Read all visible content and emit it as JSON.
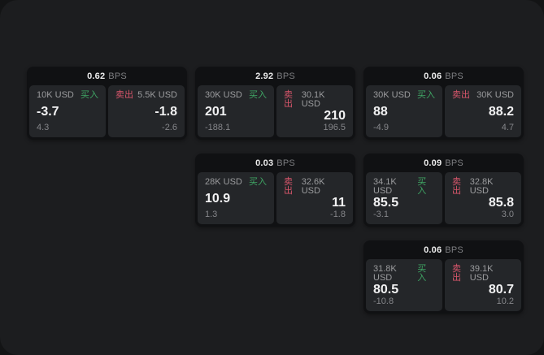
{
  "labels": {
    "bps_unit": "BPS",
    "buy": "买入",
    "sell": "卖出"
  },
  "colors": {
    "background": "#131415",
    "window": "#1c1d1f",
    "card": "#101113",
    "panel": "#242629",
    "buy_green": "#3fa564",
    "sell_red": "#d8566b",
    "value_text": "#f2f2f3",
    "muted_text": "#85868a"
  },
  "cards": [
    {
      "bps": "0.62",
      "buy": {
        "notional": "10K USD",
        "value": "-3.7",
        "delta": "4.3"
      },
      "sell": {
        "notional": "5.5K USD",
        "value": "-1.8",
        "delta": "-2.6"
      }
    },
    {
      "bps": "2.92",
      "buy": {
        "notional": "30K USD",
        "value": "201",
        "delta": "-188.1"
      },
      "sell": {
        "notional": "30.1K USD",
        "value": "210",
        "delta": "196.5"
      }
    },
    {
      "bps": "0.06",
      "buy": {
        "notional": "30K USD",
        "value": "88",
        "delta": "-4.9"
      },
      "sell": {
        "notional": "30K USD",
        "value": "88.2",
        "delta": "4.7"
      }
    },
    {
      "bps": "0.03",
      "buy": {
        "notional": "28K USD",
        "value": "10.9",
        "delta": "1.3"
      },
      "sell": {
        "notional": "32.6K USD",
        "value": "11",
        "delta": "-1.8"
      }
    },
    {
      "bps": "0.09",
      "buy": {
        "notional": "34.1K USD",
        "value": "85.5",
        "delta": "-3.1"
      },
      "sell": {
        "notional": "32.8K USD",
        "value": "85.8",
        "delta": "3.0"
      }
    },
    {
      "bps": "0.06",
      "buy": {
        "notional": "31.8K USD",
        "value": "80.5",
        "delta": "-10.8"
      },
      "sell": {
        "notional": "39.1K USD",
        "value": "80.7",
        "delta": "10.2"
      }
    }
  ]
}
